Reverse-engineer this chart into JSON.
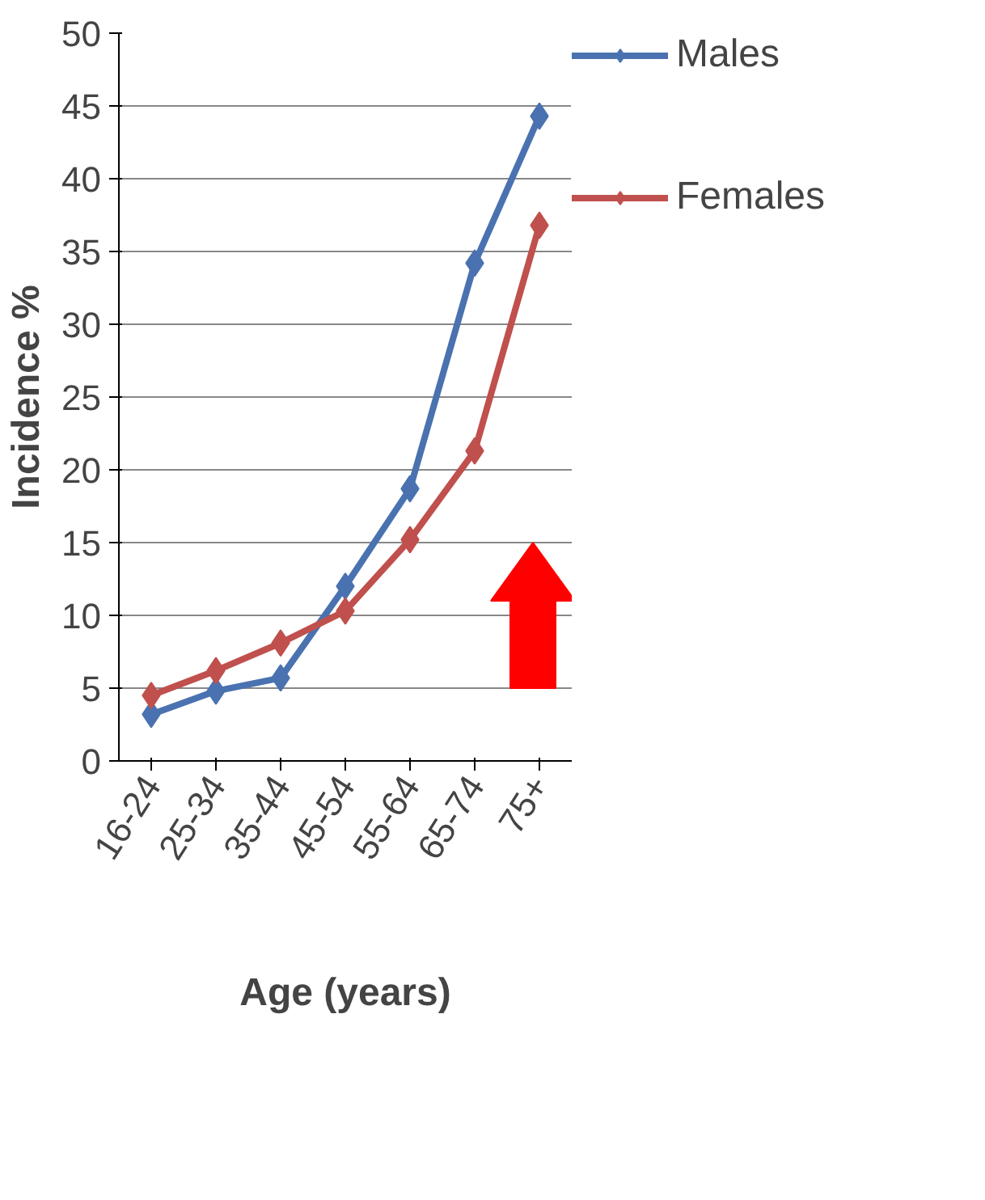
{
  "chart_data": {
    "type": "line",
    "xlabel": "Age (years)",
    "ylabel": "Incidence %",
    "categories": [
      "16-24",
      "25-34",
      "35-44",
      "45-54",
      "55-64",
      "65-74",
      "75+"
    ],
    "series": [
      {
        "name": "Males",
        "color": "#4a72b0",
        "values": [
          3.2,
          4.8,
          5.7,
          12,
          18.7,
          34.2,
          44.3
        ]
      },
      {
        "name": "Females",
        "color": "#c0504d",
        "values": [
          4.5,
          6.2,
          8.1,
          10.3,
          15.2,
          21.3,
          36.8
        ]
      }
    ],
    "ylim": [
      0,
      50
    ],
    "yticks": [
      0,
      5,
      10,
      15,
      20,
      25,
      30,
      35,
      40,
      45,
      50
    ],
    "grid": "y",
    "legend": "right",
    "marker": "diamond",
    "line_style": "solid"
  }
}
